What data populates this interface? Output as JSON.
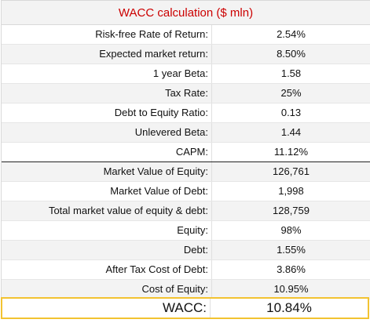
{
  "title": "WACC calculation ($ mln)",
  "colors": {
    "title_text": "#cc0000",
    "shaded_row": "#f3f3f3",
    "total_border": "#f2c331"
  },
  "rows": [
    {
      "label": "Risk-free Rate of Return:",
      "value": "2.54%"
    },
    {
      "label": "Expected market return:",
      "value": "8.50%"
    },
    {
      "label": "1 year Beta:",
      "value": "1.58"
    },
    {
      "label": "Tax Rate:",
      "value": "25%"
    },
    {
      "label": "Debt to Equity Ratio:",
      "value": "0.13"
    },
    {
      "label": "Unlevered Beta:",
      "value": "1.44"
    },
    {
      "label": "CAPM:",
      "value": "11.12%"
    },
    {
      "label": "Market Value of Equity:",
      "value": "126,761"
    },
    {
      "label": "Market Value of Debt:",
      "value": "1,998"
    },
    {
      "label": "Total market value of equity & debt:",
      "value": "128,759"
    },
    {
      "label": "Equity:",
      "value": "98%"
    },
    {
      "label": "Debt:",
      "value": "1.55%"
    },
    {
      "label": "After Tax Cost of Debt:",
      "value": "3.86%"
    },
    {
      "label": "Cost of Equity:",
      "value": "10.95%"
    }
  ],
  "total": {
    "label": "WACC:",
    "value": "10.84%"
  }
}
